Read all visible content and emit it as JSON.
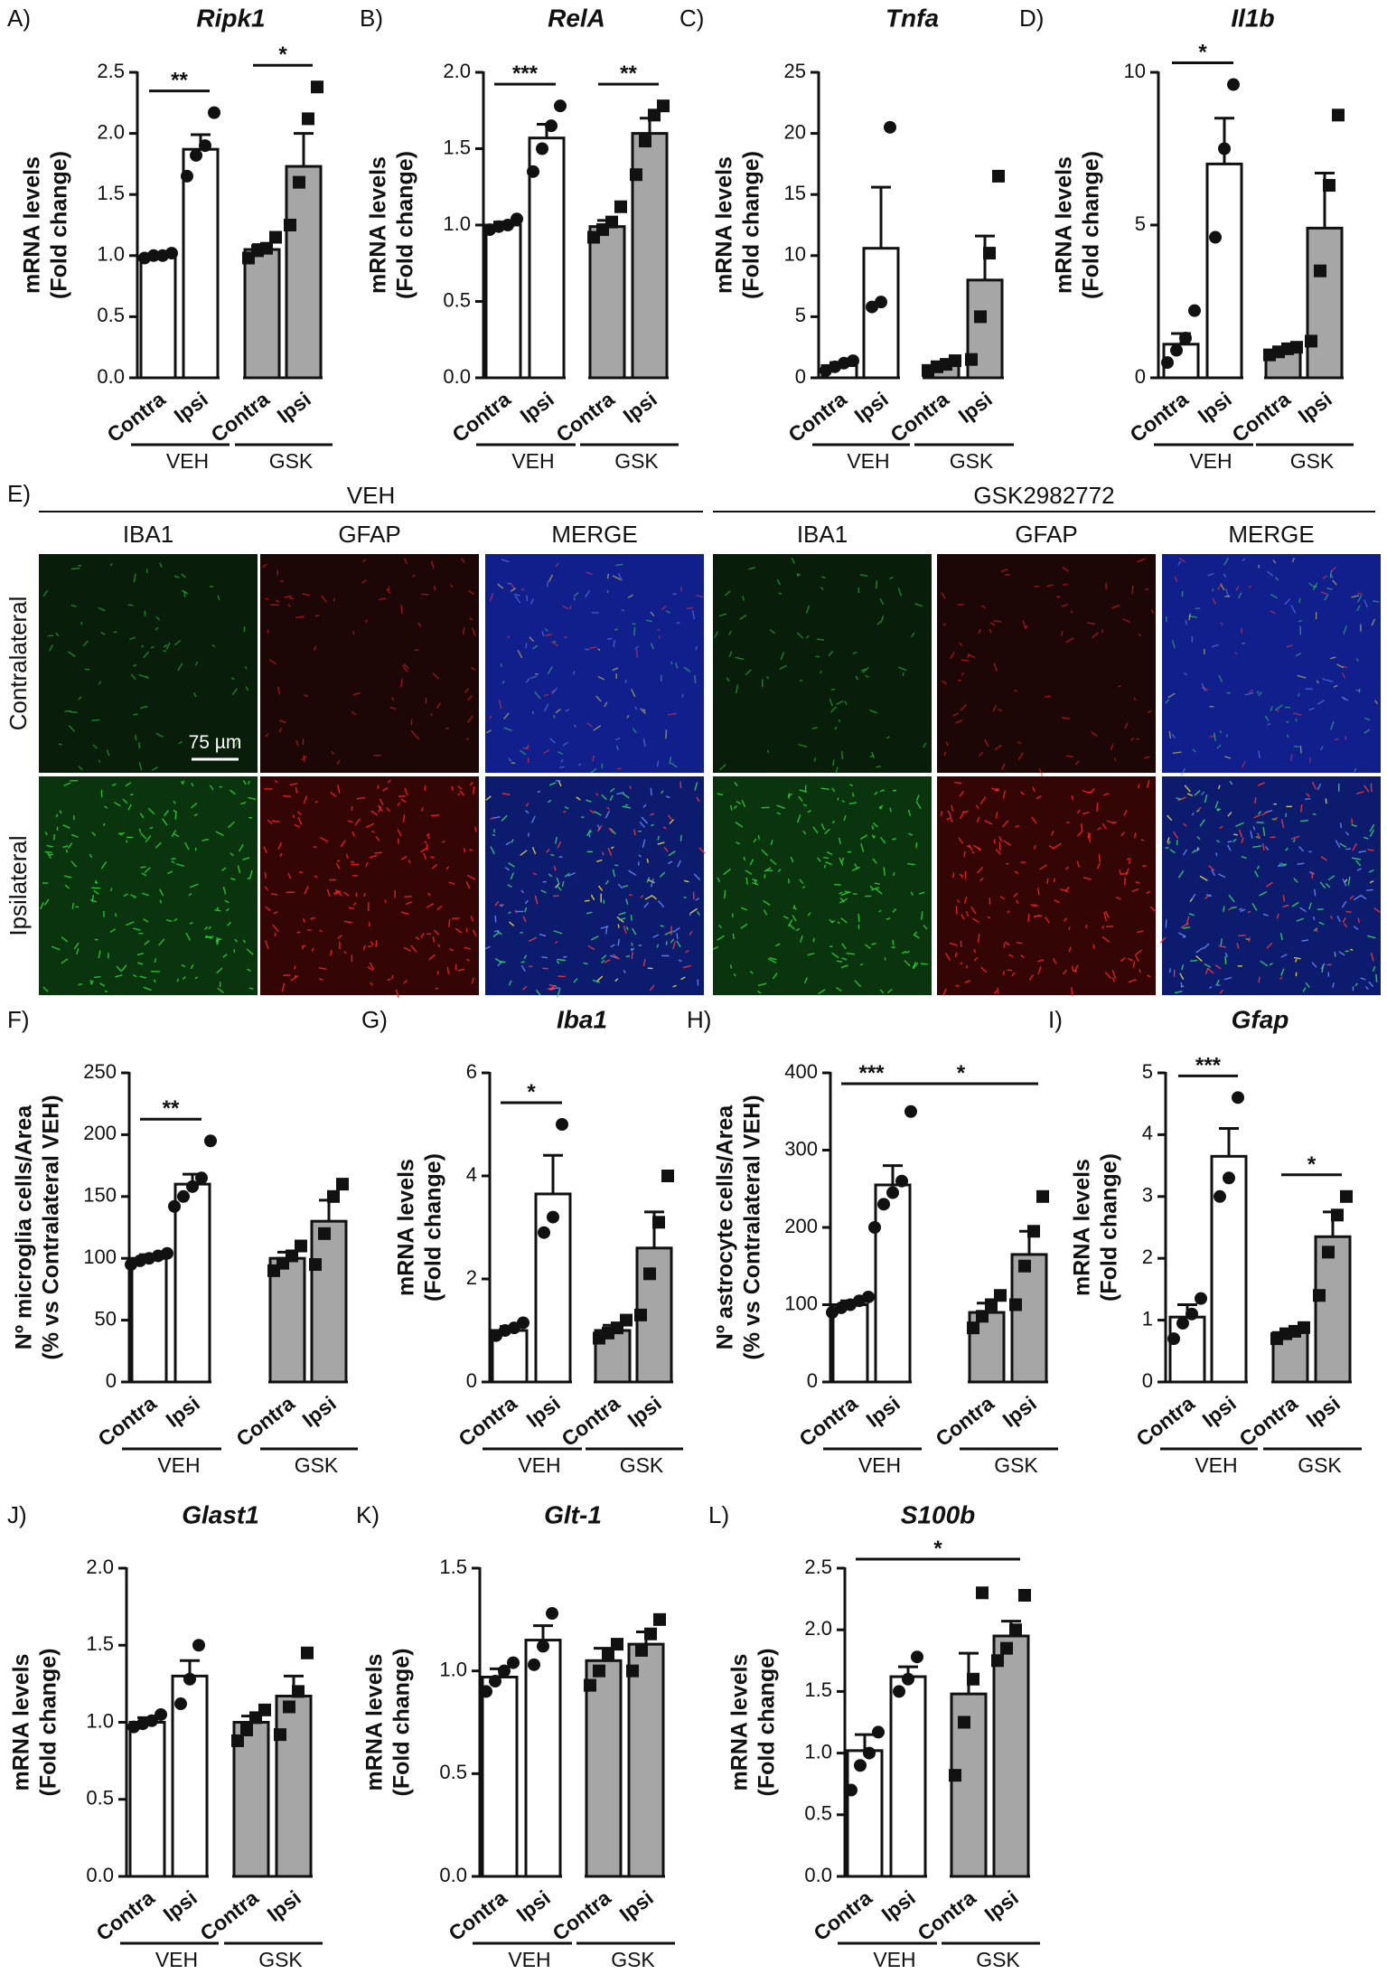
{
  "colors": {
    "veh": "#ffffff",
    "gsk": "#a6a6a6",
    "ink": "#111111"
  },
  "chart_data": [
    {
      "id": "A",
      "letter": "A)",
      "title": "Ripk1",
      "type": "bar",
      "ylabel": [
        "mRNA levels",
        "(Fold change)"
      ],
      "ylim": [
        0,
        2.5
      ],
      "yticks": [
        "0.0",
        "0.5",
        "1.0",
        "1.5",
        "2.0",
        "2.5"
      ],
      "categories": [
        "Contra",
        "Ipsi",
        "Contra",
        "Ipsi"
      ],
      "groups": [
        "VEH",
        "GSK"
      ],
      "bars": [
        {
          "group": "VEH",
          "category": "Contra",
          "mean": 1.0,
          "sem": 0.02,
          "points": [
            0.98,
            1.0,
            1.0,
            1.02
          ]
        },
        {
          "group": "VEH",
          "category": "Ipsi",
          "mean": 1.87,
          "sem": 0.12,
          "points": [
            1.65,
            1.82,
            1.9,
            2.17
          ]
        },
        {
          "group": "GSK",
          "category": "Contra",
          "mean": 1.05,
          "sem": 0.04,
          "points": [
            0.98,
            1.04,
            1.06,
            1.15
          ]
        },
        {
          "group": "GSK",
          "category": "Ipsi",
          "mean": 1.73,
          "sem": 0.27,
          "points": [
            1.25,
            1.6,
            2.12,
            2.38
          ]
        }
      ],
      "significance": [
        {
          "from": 0,
          "to": 1,
          "label": "**"
        },
        {
          "from": 2,
          "to": 3,
          "label": "*"
        }
      ]
    },
    {
      "id": "B",
      "letter": "B)",
      "title": "RelA",
      "type": "bar",
      "ylabel": [
        "mRNA levels",
        "(Fold change)"
      ],
      "ylim": [
        0,
        2.0
      ],
      "yticks": [
        "0.0",
        "0.5",
        "1.0",
        "1.5",
        "2.0"
      ],
      "categories": [
        "Contra",
        "Ipsi",
        "Contra",
        "Ipsi"
      ],
      "groups": [
        "VEH",
        "GSK"
      ],
      "bars": [
        {
          "group": "VEH",
          "category": "Contra",
          "mean": 1.0,
          "sem": 0.02,
          "points": [
            0.97,
            0.99,
            1.0,
            1.04
          ]
        },
        {
          "group": "VEH",
          "category": "Ipsi",
          "mean": 1.57,
          "sem": 0.09,
          "points": [
            1.35,
            1.5,
            1.65,
            1.78
          ]
        },
        {
          "group": "GSK",
          "category": "Contra",
          "mean": 0.99,
          "sem": 0.04,
          "points": [
            0.92,
            0.97,
            1.02,
            1.12
          ]
        },
        {
          "group": "GSK",
          "category": "Ipsi",
          "mean": 1.6,
          "sem": 0.1,
          "points": [
            1.33,
            1.55,
            1.72,
            1.78
          ]
        }
      ],
      "significance": [
        {
          "from": 0,
          "to": 1,
          "label": "***"
        },
        {
          "from": 2,
          "to": 3,
          "label": "**"
        }
      ]
    },
    {
      "id": "C",
      "letter": "C)",
      "title": "Tnfa",
      "type": "bar",
      "ylabel": [
        "mRNA levels",
        "(Fold change)"
      ],
      "ylim": [
        0,
        25
      ],
      "yticks": [
        "0",
        "5",
        "10",
        "15",
        "20",
        "25"
      ],
      "categories": [
        "Contra",
        "Ipsi",
        "Contra",
        "Ipsi"
      ],
      "groups": [
        "VEH",
        "GSK"
      ],
      "bars": [
        {
          "group": "VEH",
          "category": "Contra",
          "mean": 1.0,
          "sem": 0.25,
          "points": [
            0.6,
            0.9,
            1.2,
            1.4
          ]
        },
        {
          "group": "VEH",
          "category": "Ipsi",
          "mean": 10.6,
          "sem": 5.0,
          "points": [
            5.8,
            6.2,
            20.5
          ]
        },
        {
          "group": "GSK",
          "category": "Contra",
          "mean": 1.0,
          "sem": 0.3,
          "points": [
            0.6,
            0.9,
            1.1,
            1.4
          ]
        },
        {
          "group": "GSK",
          "category": "Ipsi",
          "mean": 8.0,
          "sem": 3.6,
          "points": [
            1.5,
            5.0,
            10.2,
            16.5
          ]
        }
      ],
      "significance": []
    },
    {
      "id": "D",
      "letter": "D)",
      "title": "Il1b",
      "type": "bar",
      "ylabel": [
        "mRNA levels",
        "(Fold change)"
      ],
      "ylim": [
        0,
        10
      ],
      "yticks": [
        "0",
        "5",
        "10"
      ],
      "categories": [
        "Contra",
        "Ipsi",
        "Contra",
        "Ipsi"
      ],
      "groups": [
        "VEH",
        "GSK"
      ],
      "bars": [
        {
          "group": "VEH",
          "category": "Contra",
          "mean": 1.1,
          "sem": 0.35,
          "points": [
            0.5,
            0.9,
            1.3,
            2.2
          ]
        },
        {
          "group": "VEH",
          "category": "Ipsi",
          "mean": 7.0,
          "sem": 1.5,
          "points": [
            4.6,
            7.5,
            9.6
          ]
        },
        {
          "group": "GSK",
          "category": "Contra",
          "mean": 0.9,
          "sem": 0.1,
          "points": [
            0.75,
            0.85,
            0.95,
            1.0
          ]
        },
        {
          "group": "GSK",
          "category": "Ipsi",
          "mean": 4.9,
          "sem": 1.8,
          "points": [
            1.2,
            3.5,
            6.3,
            8.6
          ]
        }
      ],
      "significance": [
        {
          "from": 0,
          "to": 1,
          "label": "*"
        }
      ]
    },
    {
      "id": "F",
      "letter": "F)",
      "title": "",
      "type": "bar",
      "ylabel": [
        "Nº microglia cells/Area",
        "(% vs Contralateral VEH)"
      ],
      "ylim": [
        0,
        250
      ],
      "yticks": [
        "0",
        "50",
        "100",
        "150",
        "200",
        "250"
      ],
      "categories": [
        "Contra",
        "Ipsi",
        "Contra",
        "Ipsi"
      ],
      "groups": [
        "VEH",
        "GSK"
      ],
      "bars": [
        {
          "group": "VEH",
          "category": "Contra",
          "mean": 100,
          "sem": 3,
          "points": [
            95,
            98,
            100,
            102,
            104
          ]
        },
        {
          "group": "VEH",
          "category": "Ipsi",
          "mean": 160,
          "sem": 8,
          "points": [
            142,
            150,
            158,
            165,
            195
          ]
        },
        {
          "group": "GSK",
          "category": "Contra",
          "mean": 100,
          "sem": 5,
          "points": [
            90,
            96,
            102,
            110
          ]
        },
        {
          "group": "GSK",
          "category": "Ipsi",
          "mean": 130,
          "sem": 17,
          "points": [
            95,
            120,
            150,
            160
          ]
        }
      ],
      "significance": [
        {
          "from": 0,
          "to": 1,
          "label": "**"
        }
      ]
    },
    {
      "id": "G",
      "letter": "G)",
      "title": "Iba1",
      "type": "bar",
      "ylabel": [
        "mRNA levels",
        "(Fold change)"
      ],
      "ylim": [
        0,
        6
      ],
      "yticks": [
        "0",
        "2",
        "4",
        "6"
      ],
      "categories": [
        "Contra",
        "Ipsi",
        "Contra",
        "Ipsi"
      ],
      "groups": [
        "VEH",
        "GSK"
      ],
      "bars": [
        {
          "group": "VEH",
          "category": "Contra",
          "mean": 1.0,
          "sem": 0.08,
          "points": [
            0.9,
            1.0,
            1.05,
            1.15
          ]
        },
        {
          "group": "VEH",
          "category": "Ipsi",
          "mean": 3.65,
          "sem": 0.75,
          "points": [
            2.9,
            3.2,
            5.0
          ]
        },
        {
          "group": "GSK",
          "category": "Contra",
          "mean": 1.0,
          "sem": 0.1,
          "points": [
            0.85,
            0.95,
            1.05,
            1.2
          ]
        },
        {
          "group": "GSK",
          "category": "Ipsi",
          "mean": 2.6,
          "sem": 0.7,
          "points": [
            1.3,
            2.1,
            3.1,
            4.0
          ]
        }
      ],
      "significance": [
        {
          "from": 0,
          "to": 1,
          "label": "*"
        }
      ]
    },
    {
      "id": "H",
      "letter": "H)",
      "title": "",
      "type": "bar",
      "ylabel": [
        "Nº astrocyte cells/Area",
        "(% vs Contralateral VEH)"
      ],
      "ylim": [
        0,
        400
      ],
      "yticks": [
        "0",
        "100",
        "200",
        "300",
        "400"
      ],
      "categories": [
        "Contra",
        "Ipsi",
        "Contra",
        "Ipsi"
      ],
      "groups": [
        "VEH",
        "GSK"
      ],
      "bars": [
        {
          "group": "VEH",
          "category": "Contra",
          "mean": 100,
          "sem": 5,
          "points": [
            90,
            96,
            100,
            105,
            110
          ]
        },
        {
          "group": "VEH",
          "category": "Ipsi",
          "mean": 255,
          "sem": 25,
          "points": [
            200,
            230,
            245,
            260,
            350
          ]
        },
        {
          "group": "GSK",
          "category": "Contra",
          "mean": 90,
          "sem": 12,
          "points": [
            70,
            85,
            100,
            112
          ]
        },
        {
          "group": "GSK",
          "category": "Ipsi",
          "mean": 165,
          "sem": 30,
          "points": [
            100,
            150,
            195,
            240
          ]
        }
      ],
      "significance": [
        {
          "from": 0,
          "to": 1,
          "label": "***"
        },
        {
          "from": 1,
          "to": 3,
          "label": "*"
        }
      ]
    },
    {
      "id": "I",
      "letter": "I)",
      "title": "Gfap",
      "type": "bar",
      "ylabel": [
        "mRNA levels",
        "(Fold change)"
      ],
      "ylim": [
        0,
        5
      ],
      "yticks": [
        "0",
        "1",
        "2",
        "3",
        "4",
        "5"
      ],
      "categories": [
        "Contra",
        "Ipsi",
        "Contra",
        "Ipsi"
      ],
      "groups": [
        "VEH",
        "GSK"
      ],
      "bars": [
        {
          "group": "VEH",
          "category": "Contra",
          "mean": 1.05,
          "sem": 0.2,
          "points": [
            0.7,
            0.95,
            1.1,
            1.35
          ]
        },
        {
          "group": "VEH",
          "category": "Ipsi",
          "mean": 3.65,
          "sem": 0.45,
          "points": [
            3.0,
            3.3,
            4.6
          ]
        },
        {
          "group": "GSK",
          "category": "Contra",
          "mean": 0.8,
          "sem": 0.05,
          "points": [
            0.7,
            0.78,
            0.82,
            0.88
          ]
        },
        {
          "group": "GSK",
          "category": "Ipsi",
          "mean": 2.35,
          "sem": 0.4,
          "points": [
            1.4,
            2.1,
            2.7,
            3.0
          ]
        }
      ],
      "significance": [
        {
          "from": 0,
          "to": 1,
          "label": "***"
        },
        {
          "from": 2,
          "to": 3,
          "label": "*"
        }
      ]
    },
    {
      "id": "J",
      "letter": "J)",
      "title": "Glast1",
      "type": "bar",
      "ylabel": [
        "mRNA levels",
        "(Fold change)"
      ],
      "ylim": [
        0,
        2.0
      ],
      "yticks": [
        "0.0",
        "0.5",
        "1.0",
        "1.5",
        "2.0"
      ],
      "categories": [
        "Contra",
        "Ipsi",
        "Contra",
        "Ipsi"
      ],
      "groups": [
        "VEH",
        "GSK"
      ],
      "bars": [
        {
          "group": "VEH",
          "category": "Contra",
          "mean": 1.0,
          "sem": 0.03,
          "points": [
            0.97,
            0.99,
            1.01,
            1.05
          ]
        },
        {
          "group": "VEH",
          "category": "Ipsi",
          "mean": 1.3,
          "sem": 0.1,
          "points": [
            1.12,
            1.28,
            1.5
          ]
        },
        {
          "group": "GSK",
          "category": "Contra",
          "mean": 1.0,
          "sem": 0.04,
          "points": [
            0.88,
            0.95,
            1.03,
            1.08
          ]
        },
        {
          "group": "GSK",
          "category": "Ipsi",
          "mean": 1.17,
          "sem": 0.13,
          "points": [
            0.92,
            1.1,
            1.2,
            1.45
          ]
        }
      ],
      "significance": []
    },
    {
      "id": "K",
      "letter": "K)",
      "title": "Glt-1",
      "type": "bar",
      "ylabel": [
        "mRNA levels",
        "(Fold change)"
      ],
      "ylim": [
        0,
        1.5
      ],
      "yticks": [
        "0.0",
        "0.5",
        "1.0",
        "1.5"
      ],
      "categories": [
        "Contra",
        "Ipsi",
        "Contra",
        "Ipsi"
      ],
      "groups": [
        "VEH",
        "GSK"
      ],
      "bars": [
        {
          "group": "VEH",
          "category": "Contra",
          "mean": 0.97,
          "sem": 0.04,
          "points": [
            0.9,
            0.95,
            1.0,
            1.04
          ]
        },
        {
          "group": "VEH",
          "category": "Ipsi",
          "mean": 1.15,
          "sem": 0.07,
          "points": [
            1.03,
            1.12,
            1.28
          ]
        },
        {
          "group": "GSK",
          "category": "Contra",
          "mean": 1.05,
          "sem": 0.06,
          "points": [
            0.93,
            1.0,
            1.08,
            1.13
          ]
        },
        {
          "group": "GSK",
          "category": "Ipsi",
          "mean": 1.13,
          "sem": 0.06,
          "points": [
            1.0,
            1.1,
            1.18,
            1.25
          ]
        }
      ],
      "significance": []
    },
    {
      "id": "L",
      "letter": "L)",
      "title": "S100b",
      "type": "bar",
      "ylabel": [
        "mRNA levels",
        "(Fold change)"
      ],
      "ylim": [
        0,
        2.5
      ],
      "yticks": [
        "0.0",
        "0.5",
        "1.0",
        "1.5",
        "2.0",
        "2.5"
      ],
      "categories": [
        "Contra",
        "Ipsi",
        "Contra",
        "Ipsi"
      ],
      "groups": [
        "VEH",
        "GSK"
      ],
      "bars": [
        {
          "group": "VEH",
          "category": "Contra",
          "mean": 1.02,
          "sem": 0.13,
          "points": [
            0.7,
            0.9,
            1.0,
            1.17
          ]
        },
        {
          "group": "VEH",
          "category": "Ipsi",
          "mean": 1.62,
          "sem": 0.08,
          "points": [
            1.5,
            1.6,
            1.78
          ]
        },
        {
          "group": "GSK",
          "category": "Contra",
          "mean": 1.48,
          "sem": 0.33,
          "points": [
            0.82,
            1.25,
            1.6,
            2.3
          ]
        },
        {
          "group": "GSK",
          "category": "Ipsi",
          "mean": 1.95,
          "sem": 0.12,
          "points": [
            1.75,
            1.85,
            2.0,
            2.28
          ]
        }
      ],
      "significance": [
        {
          "from": 0,
          "to": 3,
          "label": "*"
        }
      ]
    }
  ],
  "panel_E": {
    "letter": "E)",
    "treatments": [
      "VEH",
      "GSK2982772"
    ],
    "stains": [
      "IBA1",
      "GFAP",
      "MERGE"
    ],
    "rows": [
      "Contralateral",
      "Ipsilateral"
    ],
    "scale_bar": "75 µm"
  }
}
